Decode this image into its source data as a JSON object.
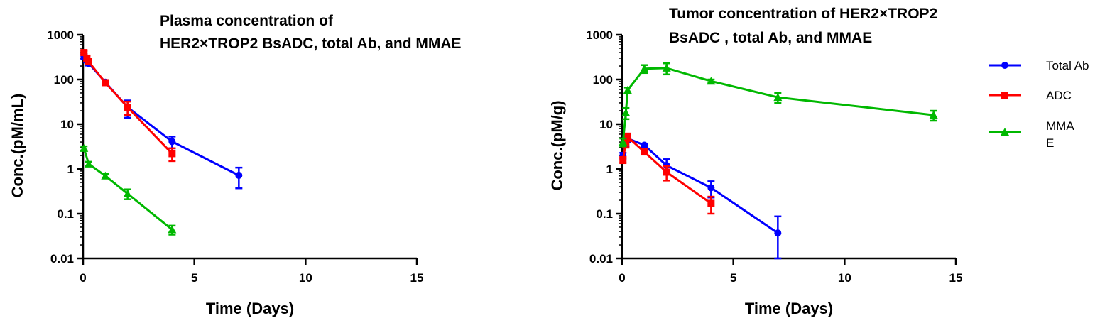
{
  "legend": [
    {
      "label": "Total Ab",
      "color": "#0000ff",
      "marker": "circle"
    },
    {
      "label": "ADC",
      "color": "#ff0000",
      "marker": "square"
    },
    {
      "label": "MMA",
      "label2": "E",
      "color": "#00b800",
      "marker": "triangle"
    }
  ],
  "chart_data": [
    {
      "type": "line",
      "title_lines": [
        "Plasma concentration of",
        "HER2×TROP2 BsADC, total Ab, and MMAE"
      ],
      "xlabel": "Time (Days)",
      "ylabel": "Conc.(pM/mL)",
      "xlim": [
        0,
        15
      ],
      "xticks": [
        0,
        5,
        10,
        15
      ],
      "ylim": [
        0.01,
        1000
      ],
      "yscale": "log",
      "yticks": [
        0.01,
        0.1,
        1,
        10,
        100,
        1000
      ],
      "ytick_labels": [
        "0.01",
        "0.1",
        "1",
        "10",
        "100",
        "1000"
      ],
      "series": [
        {
          "name": "Total Ab",
          "color": "#0000ff",
          "marker": "circle",
          "x": [
            0.04,
            0.17,
            0.25,
            1,
            2,
            4,
            7
          ],
          "y": [
            330,
            270,
            230,
            87,
            24,
            4.1,
            0.72
          ],
          "err": [
            40,
            30,
            25,
            10,
            10,
            1.2,
            0.35
          ]
        },
        {
          "name": "ADC",
          "color": "#ff0000",
          "marker": "square",
          "x": [
            0.04,
            0.17,
            0.25,
            1,
            2,
            4
          ],
          "y": [
            400,
            300,
            250,
            85,
            24,
            2.2
          ],
          "err": [
            40,
            40,
            30,
            10,
            8,
            0.7
          ]
        },
        {
          "name": "MMAE",
          "color": "#00b800",
          "marker": "triangle",
          "x": [
            0.04,
            0.25,
            1,
            2,
            4
          ],
          "y": [
            2.9,
            1.3,
            0.7,
            0.28,
            0.044
          ],
          "err": [
            0.3,
            0.15,
            0.08,
            0.07,
            0.01
          ]
        }
      ]
    },
    {
      "type": "line",
      "title_lines": [
        "Tumor concentration of HER2×TROP2",
        "BsADC , total Ab, and MMAE"
      ],
      "xlabel": "Time (Days)",
      "ylabel": "Conc.(pM/g)",
      "xlim": [
        0,
        15
      ],
      "xticks": [
        0,
        5,
        10,
        15
      ],
      "ylim": [
        0.01,
        1000
      ],
      "yscale": "log",
      "yticks": [
        0.01,
        0.1,
        1,
        10,
        100,
        1000
      ],
      "ytick_labels": [
        "0.01",
        "0.1",
        "1",
        "10",
        "100",
        "1000"
      ],
      "series": [
        {
          "name": "Total Ab",
          "color": "#0000ff",
          "marker": "circle",
          "x": [
            0.04,
            0.17,
            0.25,
            1,
            2,
            4,
            7
          ],
          "y": [
            2.0,
            4.0,
            4.8,
            3.4,
            1.2,
            0.38,
            0.037
          ],
          "err": [
            0.3,
            0.8,
            0.8,
            0.3,
            0.45,
            0.15,
            0.05
          ]
        },
        {
          "name": "ADC",
          "color": "#ff0000",
          "marker": "square",
          "x": [
            0.04,
            0.17,
            0.25,
            1,
            2,
            4
          ],
          "y": [
            1.6,
            3.8,
            5.2,
            2.4,
            0.85,
            0.17
          ],
          "err": [
            0.25,
            0.8,
            1.0,
            0.3,
            0.3,
            0.07
          ]
        },
        {
          "name": "MMAE",
          "color": "#00b800",
          "marker": "triangle",
          "x": [
            0.04,
            0.17,
            0.25,
            1,
            2,
            4,
            7,
            14
          ],
          "y": [
            4.0,
            18,
            58,
            175,
            180,
            92,
            40,
            16
          ],
          "err": [
            0.8,
            5,
            8,
            35,
            50,
            8,
            10,
            4
          ]
        }
      ]
    }
  ]
}
